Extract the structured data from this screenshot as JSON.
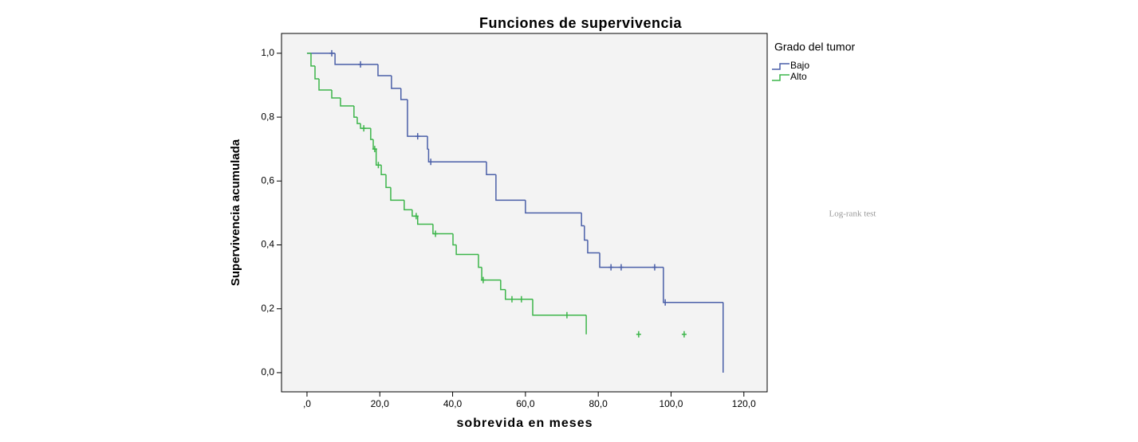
{
  "chart_data": {
    "type": "step",
    "title": "Funciones de supervivencia",
    "x_label": "sobrevida en meses",
    "y_label": "Supervivencia acumulada",
    "legend_title": "Grado del tumor",
    "annotation": "Log-rank test",
    "xlim": [
      -7,
      126.4
    ],
    "ylim": [
      -0.06,
      1.062
    ],
    "xticks": [
      {
        "value": 0,
        "label": ",0"
      },
      {
        "value": 20,
        "label": "20,0"
      },
      {
        "value": 40,
        "label": "40,0"
      },
      {
        "value": 60,
        "label": "60,0"
      },
      {
        "value": 80,
        "label": "80,0"
      },
      {
        "value": 100,
        "label": "100,0"
      },
      {
        "value": 120,
        "label": "120,0"
      }
    ],
    "yticks": [
      {
        "value": 0,
        "label": "0,0"
      },
      {
        "value": 0.2,
        "label": "0,2"
      },
      {
        "value": 0.4,
        "label": "0,4"
      },
      {
        "value": 0.6,
        "label": "0,6"
      },
      {
        "value": 0.8,
        "label": "0,8"
      },
      {
        "value": 1.0,
        "label": "1,0"
      }
    ],
    "series": [
      {
        "name": "Bajo",
        "color": "#4a5fa8",
        "x": [
          0,
          7.7,
          19.5,
          23.2,
          25.8,
          27.6,
          33.1,
          33.4,
          49.3,
          51.9,
          60,
          75.4,
          76.2,
          77.1,
          80.4,
          97.9,
          114.3
        ],
        "values": [
          1.0,
          0.965,
          0.93,
          0.89,
          0.855,
          0.74,
          0.7,
          0.66,
          0.62,
          0.54,
          0.5,
          0.46,
          0.415,
          0.375,
          0.33,
          0.22,
          0.0
        ],
        "censored_x": [
          6.8,
          14.7,
          30.4,
          34,
          83.5,
          86.3,
          95.5,
          98.4
        ],
        "censored_values": [
          1.0,
          0.965,
          0.74,
          0.66,
          0.33,
          0.33,
          0.33,
          0.22
        ]
      },
      {
        "name": "Alto",
        "color": "#3cb54a",
        "x": [
          0,
          1.1,
          2.2,
          3.3,
          6.8,
          9.2,
          12.9,
          13.8,
          14.7,
          17.5,
          18.2,
          19,
          20.4,
          21.7,
          23,
          26.7,
          28.9,
          30.4,
          34.6,
          40.1,
          41,
          47.1,
          48,
          53.2,
          54.5,
          62,
          76.7
        ],
        "values": [
          1.0,
          0.96,
          0.92,
          0.885,
          0.86,
          0.835,
          0.8,
          0.78,
          0.765,
          0.73,
          0.7,
          0.65,
          0.62,
          0.58,
          0.54,
          0.51,
          0.49,
          0.465,
          0.435,
          0.4,
          0.37,
          0.33,
          0.29,
          0.26,
          0.23,
          0.18,
          0.12
        ],
        "censored_x": [
          15.6,
          18.6,
          19.6,
          30,
          35.3,
          48.4,
          56.3,
          58.9,
          71.4,
          91.1,
          103.6
        ],
        "censored_values": [
          0.765,
          0.7,
          0.65,
          0.49,
          0.435,
          0.29,
          0.23,
          0.23,
          0.18,
          0.12,
          0.12
        ]
      }
    ]
  }
}
